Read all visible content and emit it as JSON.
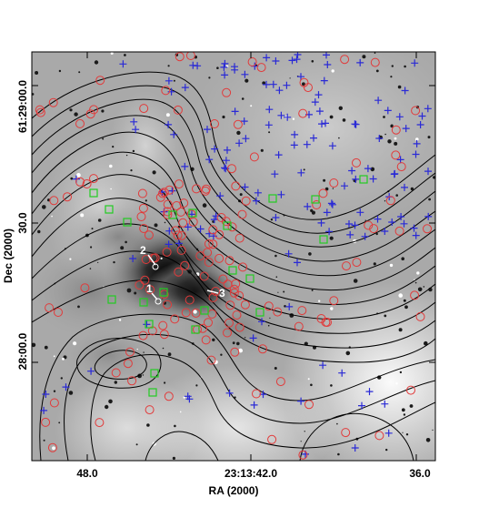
{
  "figure": {
    "x_axis_label": "RA (2000)",
    "y_axis_label": "Dec (2000)",
    "x_ticks": [
      "48.0",
      "23:13:42.0",
      "36.0"
    ],
    "y_ticks": [
      "61:29:00.0",
      "30.0",
      "28:00.0"
    ]
  },
  "sources": [
    {
      "label": "1"
    },
    {
      "label": "2"
    },
    {
      "label": "3"
    }
  ],
  "legend_symbols": {
    "circle_color": "#e23a3a",
    "cross_color": "#2a2ad6",
    "square_color": "#22cc22",
    "contour_color": "#000000"
  }
}
